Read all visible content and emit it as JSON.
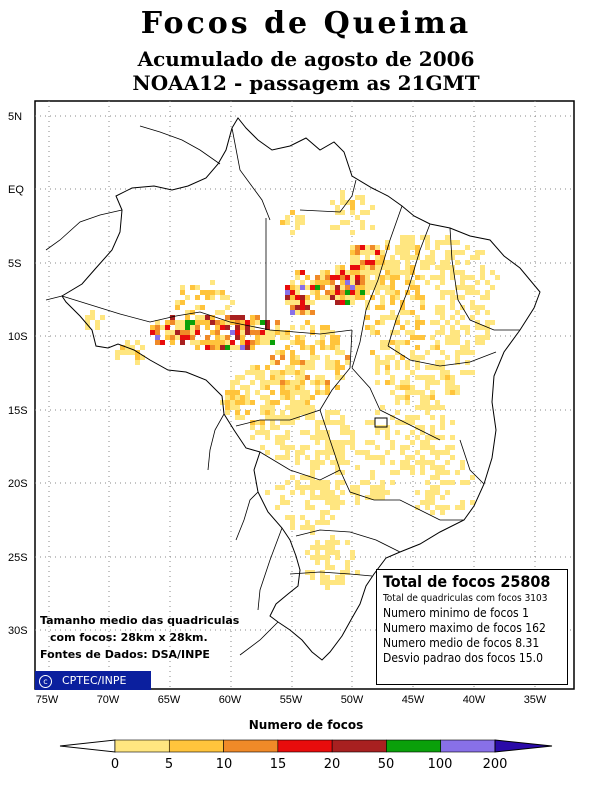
{
  "header": {
    "title": "Focos de Queima",
    "subtitle": "Acumulado de agosto de 2006",
    "satellite": "NOAA12 - passagem as 21GMT"
  },
  "axes": {
    "lat_labels": [
      "5N",
      "EQ",
      "5S",
      "10S",
      "15S",
      "20S",
      "25S",
      "30S"
    ],
    "lon_labels": [
      "75W",
      "70W",
      "65W",
      "60W",
      "55W",
      "50W",
      "45W",
      "40W",
      "35W"
    ]
  },
  "stats": {
    "total": "Total de focos 25808",
    "quadriculas": "Total de quadriculas com focos 3103",
    "minimo": "Numero minimo de focos 1",
    "maximo": "Numero maximo de focos 162",
    "medio": "Numero medio de focos 8.31",
    "desvio": "Desvio padrao dos focos 15.0"
  },
  "notes": {
    "line1": "Tamanho medio das quadriculas",
    "line2": "com focos: 28km x 28km.",
    "line3": "Fontes de Dados: DSA/INPE"
  },
  "logo": {
    "symbol": "c",
    "text": "CPTEC/INPE"
  },
  "legend": {
    "title": "Numero de focos",
    "ticks": [
      "0",
      "5",
      "10",
      "15",
      "20",
      "50",
      "100",
      "200"
    ],
    "colors": [
      "#ffe680",
      "#ffc43c",
      "#f08a28",
      "#e80c0c",
      "#a82020",
      "#0aa00a",
      "#8870e8"
    ],
    "left_arrow_color": "#ffffff",
    "right_arrow_color": "#2a0aa8"
  },
  "colors": {
    "frame": "#000000",
    "grid": "#888888",
    "logo_bg": "#0b1f9e"
  }
}
